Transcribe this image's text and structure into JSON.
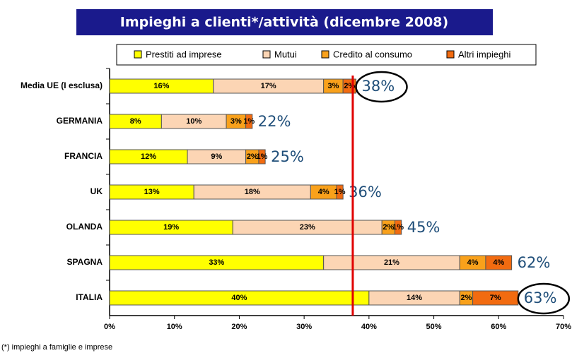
{
  "chart_data": {
    "type": "stacked_barh",
    "title": "Impieghi a clienti*/attività (dicembre 2008)",
    "footnote": "(*) impieghi a famiglie e imprese",
    "categories": [
      "Media UE (I esclusa)",
      "GERMANIA",
      "FRANCIA",
      "UK",
      "OLANDA",
      "SPAGNA",
      "ITALIA"
    ],
    "series": [
      {
        "name": "Prestiti ad imprese",
        "color": "#ffff00",
        "values": [
          16,
          8,
          12,
          13,
          19,
          33,
          40
        ],
        "value_labels": [
          "16%",
          "8%",
          "12%",
          "13%",
          "19%",
          "33%",
          "40%"
        ]
      },
      {
        "name": "Mutui",
        "color": "#fcd5b4",
        "values": [
          17,
          10,
          9,
          18,
          23,
          21,
          14
        ],
        "value_labels": [
          "17%",
          "10%",
          "9%",
          "18%",
          "23%",
          "21%",
          "14%"
        ]
      },
      {
        "name": "Credito al consumo",
        "color": "#f9a11b",
        "values": [
          3,
          3,
          2,
          4,
          2,
          4,
          2
        ],
        "value_labels": [
          "3%",
          "3%",
          "2%",
          "4%",
          "2%",
          "4%",
          "2%"
        ]
      },
      {
        "name": "Altri impieghi",
        "color": "#f26b10",
        "values": [
          2,
          1,
          1,
          1,
          1,
          4,
          7
        ],
        "value_labels": [
          "2%",
          "1%",
          "1%",
          "1%",
          "1%",
          "4%",
          "7%"
        ]
      }
    ],
    "annotations": [
      "38%",
      "22%",
      "25%",
      "36%",
      "45%",
      "62%",
      "63%"
    ],
    "circled": [
      0,
      6
    ],
    "reference_line": 37.5,
    "xlim": [
      0,
      70
    ],
    "xticks": [
      {
        "value": 0,
        "label": "0%"
      },
      {
        "value": 10,
        "label": "10%"
      },
      {
        "value": 20,
        "label": "20%"
      },
      {
        "value": 30,
        "label": "30%"
      },
      {
        "value": 40,
        "label": "40%"
      },
      {
        "value": 50,
        "label": "50%"
      },
      {
        "value": 60,
        "label": "60%"
      },
      {
        "value": 70,
        "label": "70%"
      }
    ],
    "legend": "top"
  }
}
